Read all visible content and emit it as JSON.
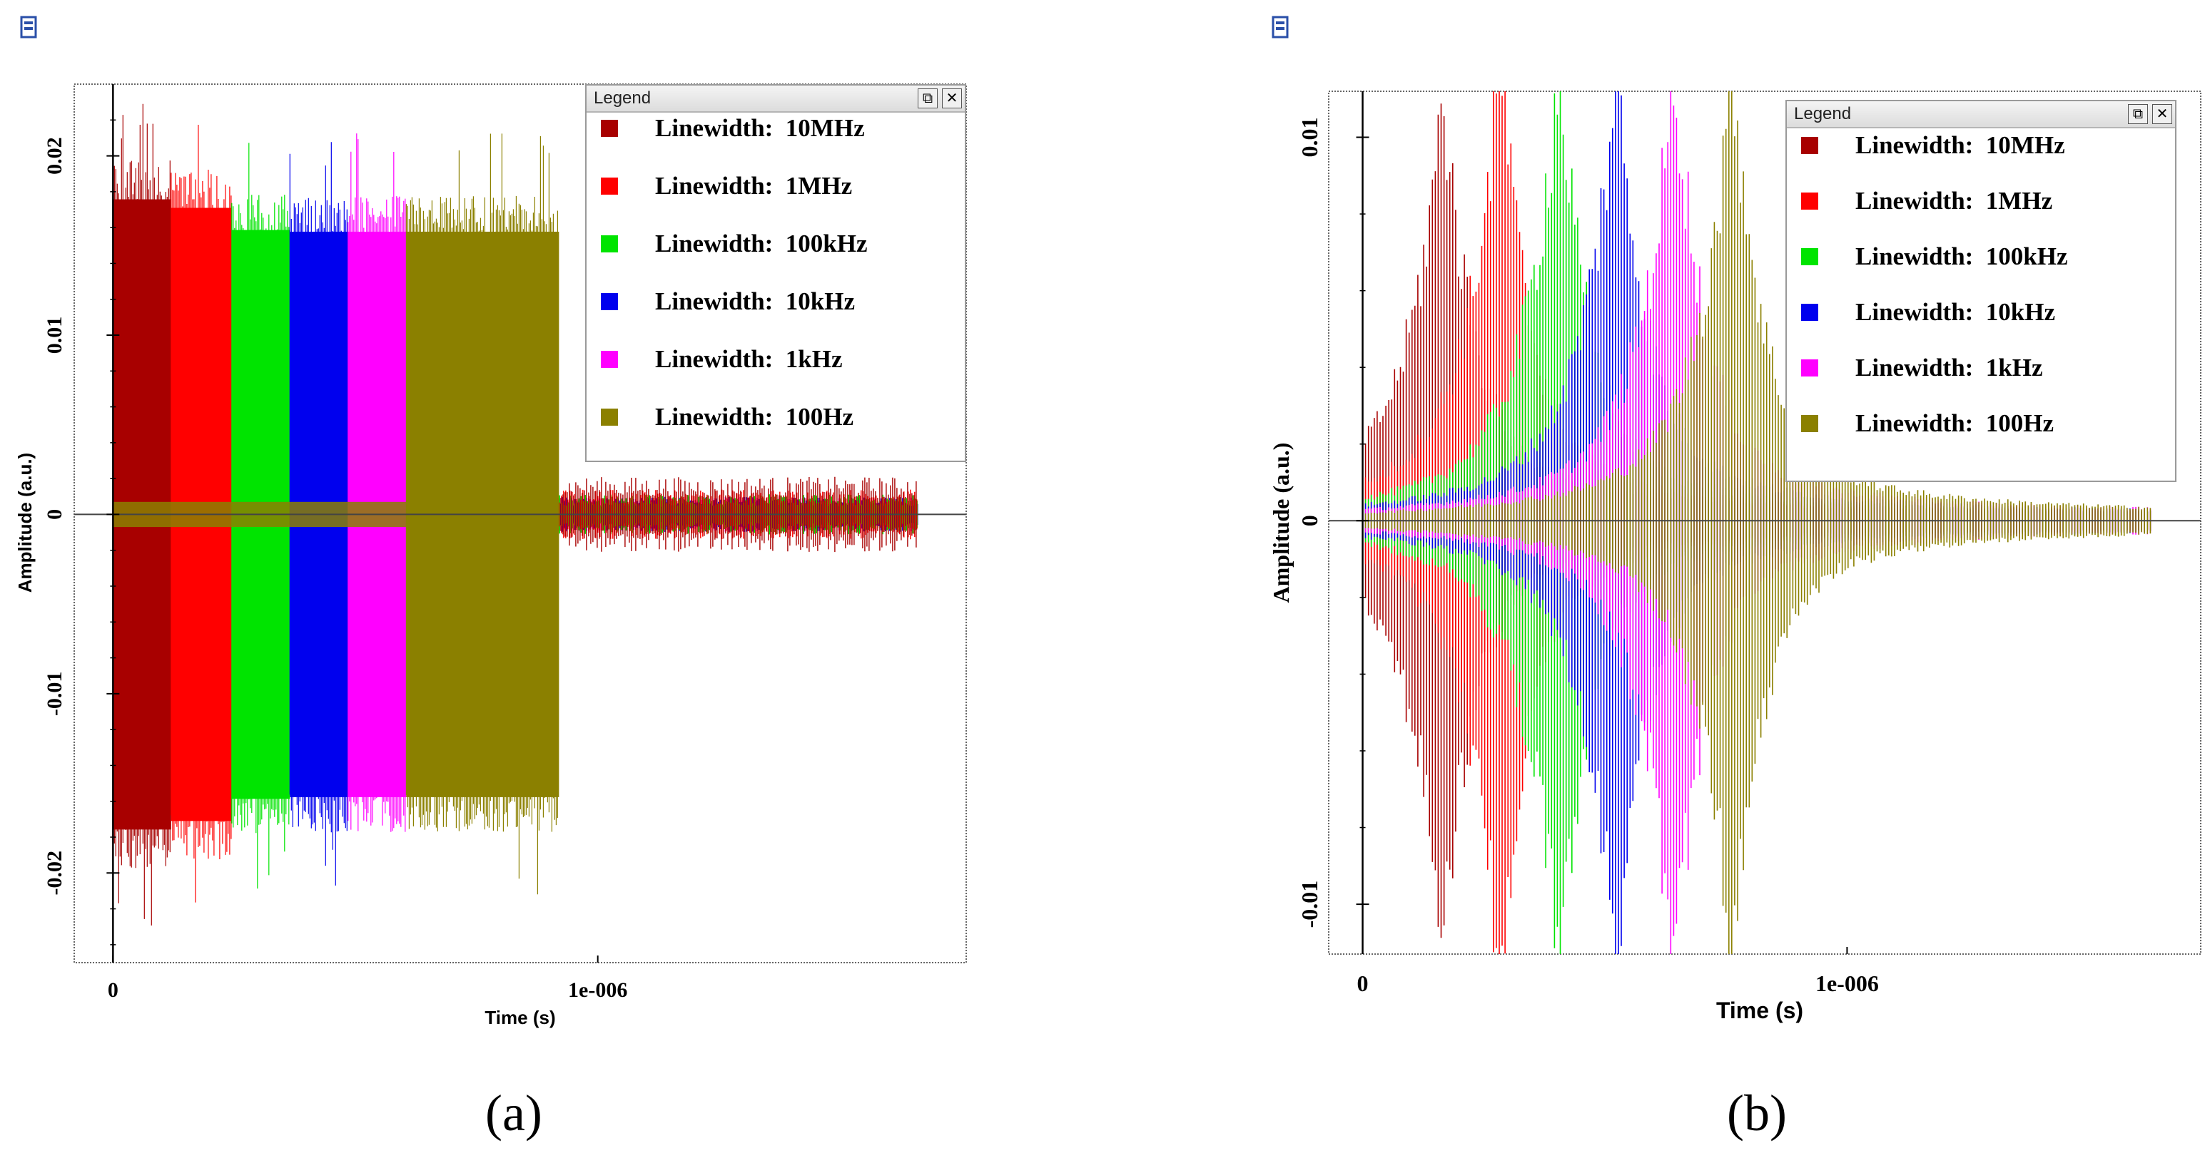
{
  "chart_data": [
    {
      "type": "line",
      "panel_label": "(a)",
      "xlabel": "Time (s)",
      "ylabel": "Amplitude (a.u.)",
      "xlim": [
        -8e-08,
        1.76e-06
      ],
      "ylim": [
        -0.025,
        0.024
      ],
      "x_ticks": [
        {
          "value": 0,
          "label": "0"
        },
        {
          "value": 1e-06,
          "label": "1e-006"
        }
      ],
      "y_ticks": [
        {
          "value": 0.02,
          "label": "0.02"
        },
        {
          "value": 0.01,
          "label": "0.01"
        },
        {
          "value": 0,
          "label": "0"
        },
        {
          "value": -0.01,
          "label": "-0.01"
        },
        {
          "value": -0.02,
          "label": "-0.02"
        }
      ],
      "legend": {
        "title": "Legend",
        "position": "top-right"
      },
      "series": [
        {
          "name": "Linewidth:  10MHz",
          "color": "#a80000",
          "burst_start": 0,
          "burst_end": 1.2e-07,
          "amplitude": 0.0185,
          "tail_amplitude": 0.0015,
          "tail_end": 1.66e-06
        },
        {
          "name": "Linewidth:  1MHz",
          "color": "#ff0000",
          "burst_start": 1.2e-07,
          "burst_end": 2.45e-07,
          "amplitude": 0.018,
          "tail_amplitude": 0.001,
          "tail_end": 1.66e-06
        },
        {
          "name": "Linewidth:  100kHz",
          "color": "#00e400",
          "burst_start": 2.45e-07,
          "burst_end": 3.65e-07,
          "amplitude": 0.0167,
          "tail_amplitude": 0.0008,
          "tail_end": 1.66e-06
        },
        {
          "name": "Linewidth:  10kHz",
          "color": "#0000ee",
          "burst_start": 3.65e-07,
          "burst_end": 4.85e-07,
          "amplitude": 0.0166,
          "tail_amplitude": 0.0007,
          "tail_end": 1.66e-06
        },
        {
          "name": "Linewidth:  1kHz",
          "color": "#ff00ff",
          "burst_start": 4.85e-07,
          "burst_end": 6.05e-07,
          "amplitude": 0.0166,
          "tail_amplitude": 0.0007,
          "tail_end": 1.66e-06
        },
        {
          "name": "Linewidth:  100Hz",
          "color": "#8b8000",
          "burst_start": 6.05e-07,
          "burst_end": 9.2e-07,
          "amplitude": 0.0166,
          "tail_amplitude": 0.0006,
          "tail_end": 1.66e-06
        }
      ]
    },
    {
      "type": "line",
      "panel_label": "(b)",
      "xlabel": "Time (s)",
      "ylabel": "Amplitude (a.u.)",
      "xlim": [
        -7e-08,
        1.73e-06
      ],
      "ylim": [
        -0.0113,
        0.0112
      ],
      "x_ticks": [
        {
          "value": 0,
          "label": "0"
        },
        {
          "value": 1e-06,
          "label": "1e-006"
        }
      ],
      "y_ticks": [
        {
          "value": 0.01,
          "label": "0.01"
        },
        {
          "value": 0,
          "label": "0"
        },
        {
          "value": -0.01,
          "label": "-0.01"
        }
      ],
      "legend": {
        "title": "Legend",
        "position": "top-right"
      },
      "series": [
        {
          "name": "Linewidth:  10MHz",
          "color": "#a80000",
          "peak_time": 1.67e-07,
          "peak_amplitude": 0.0094,
          "tail_end": 1.63e-06
        },
        {
          "name": "Linewidth:  1MHz",
          "color": "#ff0000",
          "peak_time": 2.85e-07,
          "peak_amplitude": 0.0101,
          "tail_end": 1.63e-06
        },
        {
          "name": "Linewidth:  100kHz",
          "color": "#00e400",
          "peak_time": 4.05e-07,
          "peak_amplitude": 0.0101,
          "tail_end": 1.63e-06
        },
        {
          "name": "Linewidth:  10kHz",
          "color": "#0000ee",
          "peak_time": 5.25e-07,
          "peak_amplitude": 0.0101,
          "tail_end": 1.63e-06
        },
        {
          "name": "Linewidth:  1kHz",
          "color": "#ff00ff",
          "peak_time": 6.45e-07,
          "peak_amplitude": 0.0101,
          "tail_end": 1.63e-06
        },
        {
          "name": "Linewidth:  100Hz",
          "color": "#8b8000",
          "peak_time": 7.65e-07,
          "peak_amplitude": 0.0101,
          "tail_end": 1.63e-06
        }
      ]
    }
  ]
}
